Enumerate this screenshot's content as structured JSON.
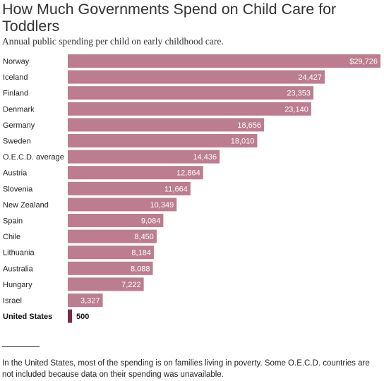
{
  "title": "How Much Governments Spend on Child Care for Toddlers",
  "subtitle": "Annual public spending per child on early childhood care.",
  "footnote": "In the United States, most of the spending is on families living in poverty. Some O.E.C.D. countries are not included because data on their spending was unavailable.",
  "colors": {
    "bar": "#bb7d8f",
    "highlight_bar": "#7a2d47"
  },
  "chart_data": {
    "type": "bar",
    "orientation": "horizontal",
    "categories": [
      "Norway",
      "Iceland",
      "Finland",
      "Denmark",
      "Germany",
      "Sweden",
      "O.E.C.D. average",
      "Austria",
      "Slovenia",
      "New Zealand",
      "Spain",
      "Chile",
      "Lithuania",
      "Australia",
      "Hungary",
      "Israel",
      "United States"
    ],
    "values": [
      29726,
      24427,
      23353,
      23140,
      18656,
      18010,
      14436,
      12864,
      11664,
      10349,
      9084,
      8450,
      8184,
      8088,
      7222,
      3327,
      500
    ],
    "value_labels": [
      "$29,726",
      "24,427",
      "23,353",
      "23,140",
      "18,656",
      "18,010",
      "14,436",
      "12,864",
      "11,664",
      "10,349",
      "9,084",
      "8,450",
      "8,184",
      "8,088",
      "7,222",
      "3,327",
      "500"
    ],
    "highlight": "United States",
    "xlim": [
      0,
      29726
    ]
  }
}
